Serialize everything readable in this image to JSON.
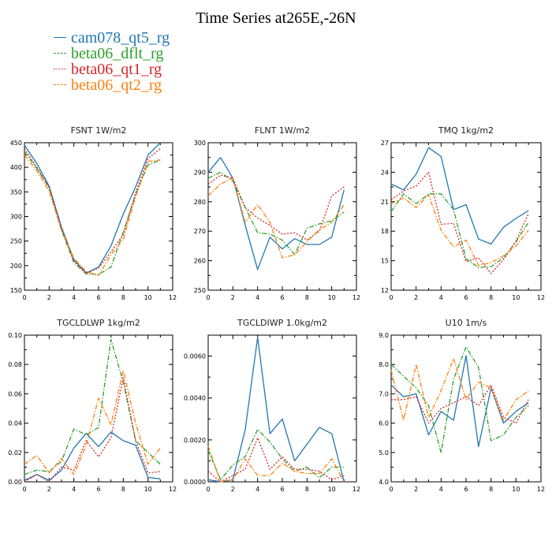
{
  "figure": {
    "title": "Time Series at265E,-26N"
  },
  "legend": {
    "entries": [
      {
        "name": "cam078_qt5_rg",
        "color": "#1f77b4",
        "dash": "solid"
      },
      {
        "name": "beta06_dflt_rg",
        "color": "#2ca02c",
        "dash": "dashdot"
      },
      {
        "name": "beta06_qt1_rg",
        "color": "#d62728",
        "dash": "dot"
      },
      {
        "name": "beta06_qt2_rg",
        "color": "#ff7f0e",
        "dash": "dashdot"
      }
    ]
  },
  "chart_data": [
    {
      "type": "line",
      "title": "FSNT  1W/m2",
      "xlim": [
        0,
        12
      ],
      "ylim": [
        150,
        450
      ],
      "xticks": [
        0,
        2,
        4,
        6,
        8,
        10,
        12
      ],
      "yticks": [
        150,
        200,
        250,
        300,
        350,
        400,
        450
      ],
      "ytick_labels": [
        "150",
        "200",
        "250",
        "300",
        "350",
        "400",
        "450"
      ],
      "x": [
        0,
        1,
        2,
        3,
        4,
        5,
        6,
        7,
        8,
        9,
        10,
        11
      ],
      "series": [
        {
          "name": "cam078_qt5_rg",
          "values": [
            445,
            408,
            362,
            278,
            212,
            185,
            197,
            240,
            305,
            360,
            425,
            450
          ]
        },
        {
          "name": "beta06_dflt_rg",
          "values": [
            432,
            398,
            358,
            272,
            206,
            183,
            182,
            197,
            268,
            345,
            405,
            415
          ]
        },
        {
          "name": "beta06_qt1_rg",
          "values": [
            438,
            400,
            360,
            275,
            210,
            184,
            195,
            228,
            263,
            348,
            418,
            438
          ]
        },
        {
          "name": "beta06_qt2_rg",
          "values": [
            425,
            393,
            352,
            272,
            215,
            188,
            180,
            222,
            253,
            340,
            412,
            415
          ]
        }
      ]
    },
    {
      "type": "line",
      "title": "FLNT  1W/m2",
      "xlim": [
        0,
        12
      ],
      "ylim": [
        250,
        300
      ],
      "xticks": [
        0,
        2,
        4,
        6,
        8,
        10,
        12
      ],
      "yticks": [
        250,
        260,
        270,
        280,
        290,
        300
      ],
      "ytick_labels": [
        "250",
        "260",
        "270",
        "280",
        "290",
        "300"
      ],
      "x": [
        0,
        1,
        2,
        3,
        4,
        5,
        6,
        7,
        8,
        9,
        10,
        11
      ],
      "series": [
        {
          "name": "cam078_qt5_rg",
          "values": [
            290,
            295,
            288,
            272,
            257,
            268,
            264,
            267.5,
            265.5,
            265.5,
            268,
            284
          ]
        },
        {
          "name": "beta06_dflt_rg",
          "values": [
            288,
            290,
            287,
            278,
            269.5,
            269,
            267,
            262,
            271,
            272.5,
            273.5,
            276.5
          ]
        },
        {
          "name": "beta06_qt1_rg",
          "values": [
            286,
            289,
            288,
            278,
            274.5,
            272,
            269,
            269.5,
            267,
            270,
            282,
            285
          ]
        },
        {
          "name": "beta06_qt2_rg",
          "values": [
            282,
            286,
            288,
            273,
            279,
            273,
            261,
            262,
            266.5,
            270.5,
            273,
            279
          ]
        }
      ]
    },
    {
      "type": "line",
      "title": "TMQ  1kg/m2",
      "xlim": [
        0,
        12
      ],
      "ylim": [
        12,
        27
      ],
      "xticks": [
        0,
        2,
        4,
        6,
        8,
        10,
        12
      ],
      "yticks": [
        12,
        15,
        18,
        21,
        24,
        27
      ],
      "ytick_labels": [
        "12",
        "15",
        "18",
        "21",
        "24",
        "27"
      ],
      "x": [
        0,
        1,
        2,
        3,
        4,
        5,
        6,
        7,
        8,
        9,
        10,
        11
      ],
      "series": [
        {
          "name": "cam078_qt5_rg",
          "values": [
            22.8,
            22.2,
            23.8,
            26.5,
            25.6,
            20.2,
            20.7,
            17.2,
            16.7,
            18.4,
            19.3,
            20.1
          ]
        },
        {
          "name": "beta06_dflt_rg",
          "values": [
            20,
            21.8,
            20.8,
            21.8,
            21.8,
            20.2,
            15.2,
            14.3,
            14.4,
            15.3,
            16.9,
            18.9
          ]
        },
        {
          "name": "beta06_qt1_rg",
          "values": [
            21.2,
            22.1,
            22.6,
            24.0,
            18.7,
            18.8,
            14.9,
            15.3,
            13.7,
            15.1,
            17.0,
            19.8
          ]
        },
        {
          "name": "beta06_qt2_rg",
          "values": [
            20.8,
            21.4,
            20.4,
            21.7,
            18.1,
            16.4,
            17.1,
            14.5,
            14.8,
            15.5,
            16.5,
            18.1
          ]
        }
      ]
    },
    {
      "type": "line",
      "title": "TGCLDLWP  1kg/m2",
      "xlim": [
        0,
        12
      ],
      "ylim": [
        0,
        0.1
      ],
      "xticks": [
        0,
        2,
        4,
        6,
        8,
        10,
        12
      ],
      "yticks": [
        0,
        0.02,
        0.04,
        0.06,
        0.08,
        0.1
      ],
      "ytick_labels": [
        "0.00",
        "0.02",
        "0.04",
        "0.06",
        "0.08",
        "0.10"
      ],
      "x": [
        0,
        1,
        2,
        3,
        4,
        5,
        6,
        7,
        8,
        9,
        10,
        11
      ],
      "series": [
        {
          "name": "cam078_qt5_rg",
          "values": [
            0.001,
            0.005,
            0.001,
            0.008,
            0.023,
            0.033,
            0.024,
            0.034,
            0.028,
            0.025,
            0.003,
            0.002
          ]
        },
        {
          "name": "beta06_dflt_rg",
          "values": [
            0.005,
            0.008,
            0.007,
            0.014,
            0.036,
            0.032,
            0.037,
            0.097,
            0.068,
            0.028,
            0.02,
            0.012
          ]
        },
        {
          "name": "beta06_qt1_rg",
          "values": [
            0.0,
            0.005,
            0.0,
            0.01,
            0.008,
            0.028,
            0.017,
            0.03,
            0.071,
            0.028,
            0.006,
            0.007
          ]
        },
        {
          "name": "beta06_qt2_rg",
          "values": [
            0.012,
            0.018,
            0.006,
            0.016,
            0.005,
            0.025,
            0.057,
            0.039,
            0.076,
            0.04,
            0.012,
            0.023
          ]
        }
      ]
    },
    {
      "type": "line",
      "title": "TGCLDIWP  1.0kg/m2",
      "xlim": [
        0,
        12
      ],
      "ylim": [
        0,
        0.007
      ],
      "xticks": [
        0,
        2,
        4,
        6,
        8,
        10,
        12
      ],
      "yticks": [
        0,
        0.002,
        0.004,
        0.006
      ],
      "ytick_labels": [
        "0.0000",
        "0.0020",
        "0.0040",
        "0.0060"
      ],
      "x": [
        0,
        1,
        2,
        3,
        4,
        5,
        6,
        7,
        8,
        9,
        10,
        11
      ],
      "series": [
        {
          "name": "cam078_qt5_rg",
          "values": [
            0.0001,
            0.0,
            0.0001,
            0.0025,
            0.0069,
            0.0023,
            0.003,
            0.001,
            0.0018,
            0.0026,
            0.0023,
            0.0
          ]
        },
        {
          "name": "beta06_dflt_rg",
          "values": [
            0.0015,
            0.0001,
            0.0008,
            0.0012,
            0.0025,
            0.0019,
            0.0011,
            0.0005,
            0.0007,
            0.0002,
            0.0007,
            0.0007
          ]
        },
        {
          "name": "beta06_qt1_rg",
          "values": [
            0.0005,
            0.0,
            0.0003,
            0.0006,
            0.0021,
            0.0006,
            0.0012,
            0.0006,
            0.0006,
            0.0005,
            0.0001,
            0.0003
          ]
        },
        {
          "name": "beta06_qt2_rg",
          "values": [
            0.0017,
            0.0,
            0.0001,
            0.0011,
            0.0003,
            0.0003,
            0.0009,
            0.0005,
            0.0004,
            0.0004,
            0.0011,
            0.0
          ]
        }
      ]
    },
    {
      "type": "line",
      "title": "U10  1m/s",
      "xlim": [
        0,
        12
      ],
      "ylim": [
        4,
        9
      ],
      "xticks": [
        0,
        2,
        4,
        6,
        8,
        10,
        12
      ],
      "yticks": [
        4,
        5,
        6,
        7,
        8,
        9
      ],
      "ytick_labels": [
        "4.0",
        "5.0",
        "6.0",
        "7.0",
        "8.0",
        "9.0"
      ],
      "x": [
        0,
        1,
        2,
        3,
        4,
        5,
        6,
        7,
        8,
        9,
        10,
        11
      ],
      "series": [
        {
          "name": "cam078_qt5_rg",
          "values": [
            7.3,
            6.9,
            7.0,
            5.6,
            6.4,
            6.1,
            8.3,
            5.2,
            7.2,
            6.0,
            6.4,
            6.7
          ]
        },
        {
          "name": "beta06_dflt_rg",
          "values": [
            8.0,
            7.6,
            7.2,
            6.6,
            5.0,
            7.5,
            8.6,
            7.9,
            5.4,
            5.6,
            6.2,
            6.6
          ]
        },
        {
          "name": "beta06_qt1_rg",
          "values": [
            6.8,
            6.8,
            6.9,
            6.0,
            6.5,
            6.7,
            6.9,
            6.6,
            7.3,
            6.2,
            6.0,
            6.8
          ]
        },
        {
          "name": "beta06_qt2_rg",
          "values": [
            7.8,
            6.1,
            8.0,
            6.2,
            7.1,
            8.2,
            6.8,
            7.4,
            7.2,
            6.1,
            6.8,
            7.1
          ]
        }
      ]
    }
  ]
}
